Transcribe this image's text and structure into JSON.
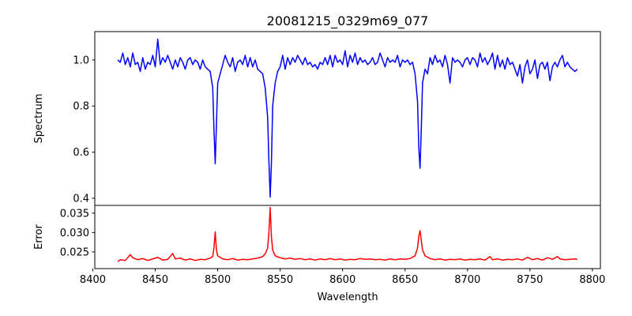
{
  "chart_data": [
    {
      "type": "line",
      "title": "20081215_0329m69_077",
      "xlabel": "",
      "ylabel": "Spectrum",
      "xlim": [
        8401.6,
        8806.4
      ],
      "ylim": [
        0.369,
        1.123
      ],
      "yticks": [
        0.4,
        0.6,
        0.8,
        1.0
      ],
      "ytick_labels": [
        "0.4",
        "0.6",
        "0.8",
        "1.0"
      ],
      "grid": false,
      "series": [
        {
          "name": "spectrum",
          "color": "#0000ff",
          "x": [
            8420,
            8422,
            8424,
            8426,
            8428,
            8430,
            8432,
            8434,
            8436,
            8438,
            8440,
            8442,
            8444,
            8446,
            8448,
            8450,
            8452,
            8454,
            8456,
            8458,
            8460,
            8462,
            8464,
            8466,
            8468,
            8470,
            8472,
            8474,
            8476,
            8478,
            8480,
            8482,
            8484,
            8486,
            8488,
            8490,
            8492,
            8494,
            8496,
            8497,
            8498,
            8499,
            8500,
            8502,
            8504,
            8506,
            8508,
            8510,
            8512,
            8514,
            8516,
            8518,
            8520,
            8522,
            8524,
            8526,
            8528,
            8530,
            8532,
            8534,
            8536,
            8538,
            8540,
            8541,
            8542,
            8543,
            8544,
            8546,
            8548,
            8550,
            8552,
            8554,
            8556,
            8558,
            8560,
            8562,
            8564,
            8566,
            8568,
            8570,
            8572,
            8574,
            8576,
            8578,
            8580,
            8582,
            8584,
            8586,
            8588,
            8590,
            8592,
            8594,
            8596,
            8598,
            8600,
            8602,
            8604,
            8606,
            8608,
            8610,
            8612,
            8614,
            8616,
            8618,
            8620,
            8622,
            8624,
            8626,
            8628,
            8630,
            8632,
            8634,
            8636,
            8638,
            8640,
            8642,
            8644,
            8646,
            8648,
            8650,
            8652,
            8654,
            8656,
            8658,
            8660,
            8661,
            8662,
            8663,
            8664,
            8666,
            8668,
            8670,
            8672,
            8674,
            8676,
            8678,
            8680,
            8682,
            8684,
            8686,
            8688,
            8690,
            8692,
            8694,
            8696,
            8698,
            8700,
            8702,
            8704,
            8706,
            8708,
            8710,
            8712,
            8714,
            8716,
            8718,
            8720,
            8722,
            8724,
            8726,
            8728,
            8730,
            8732,
            8734,
            8736,
            8738,
            8740,
            8742,
            8744,
            8746,
            8748,
            8750,
            8752,
            8754,
            8756,
            8758,
            8760,
            8762,
            8764,
            8766,
            8768,
            8770,
            8772,
            8774,
            8776,
            8778,
            8780,
            8782,
            8784,
            8786,
            8788
          ],
          "y": [
            1.0,
            0.99,
            1.03,
            0.98,
            1.01,
            0.97,
            1.03,
            0.98,
            0.99,
            0.95,
            1.01,
            0.96,
            0.99,
            0.98,
            1.02,
            0.97,
            1.09,
            0.98,
            1.01,
            0.99,
            1.02,
            0.99,
            0.96,
            1.0,
            0.97,
            1.01,
            0.99,
            0.96,
            1.0,
            1.01,
            0.98,
            1.0,
            0.99,
            0.96,
            1.0,
            0.97,
            0.96,
            0.95,
            0.88,
            0.7,
            0.55,
            0.72,
            0.9,
            0.94,
            0.98,
            1.02,
            0.99,
            0.97,
            1.01,
            0.95,
            0.99,
            1.0,
            0.98,
            1.02,
            0.97,
            1.01,
            0.97,
            1.0,
            0.96,
            0.95,
            0.94,
            0.88,
            0.75,
            0.56,
            0.405,
            0.55,
            0.8,
            0.9,
            0.95,
            0.97,
            1.02,
            0.96,
            1.01,
            0.98,
            1.01,
            0.99,
            1.02,
            1.0,
            0.98,
            1.01,
            0.98,
            0.99,
            0.97,
            0.98,
            0.96,
            0.99,
            0.98,
            1.01,
            0.98,
            1.02,
            0.97,
            1.02,
            0.99,
            1.0,
            0.98,
            1.04,
            0.97,
            1.02,
            0.99,
            1.03,
            0.98,
            1.01,
            0.99,
            1.0,
            0.98,
            0.99,
            1.01,
            0.98,
            0.99,
            1.03,
            1.0,
            0.97,
            1.01,
            0.99,
            1.0,
            0.99,
            1.02,
            0.97,
            1.0,
            0.99,
            1.0,
            0.98,
            0.99,
            0.94,
            0.82,
            0.62,
            0.53,
            0.7,
            0.9,
            0.96,
            0.94,
            1.01,
            0.98,
            1.02,
            0.99,
            1.0,
            0.97,
            1.02,
            0.98,
            0.9,
            1.01,
            0.99,
            1.0,
            0.99,
            0.97,
            1.0,
            1.01,
            0.98,
            1.01,
            1.0,
            0.97,
            1.03,
            0.99,
            1.01,
            0.98,
            1.0,
            1.03,
            0.96,
            1.02,
            0.97,
            1.0,
            0.96,
            1.01,
            0.98,
            0.99,
            0.96,
            0.93,
            0.98,
            0.9,
            0.97,
            1.0,
            0.94,
            0.96,
            1.0,
            0.92,
            0.98,
            0.99,
            0.96,
            0.99,
            0.91,
            0.97,
            0.99,
            0.97,
            1.0,
            1.02,
            0.97,
            0.99,
            0.97,
            0.96,
            0.95,
            0.96
          ]
        }
      ]
    },
    {
      "type": "line",
      "title": "",
      "xlabel": "Wavelength",
      "ylabel": "Error",
      "xlim": [
        8401.6,
        8806.4
      ],
      "ylim": [
        0.0207,
        0.037
      ],
      "xticks": [
        8400,
        8450,
        8500,
        8550,
        8600,
        8650,
        8700,
        8750,
        8800
      ],
      "xtick_labels": [
        "8400",
        "8450",
        "8500",
        "8550",
        "8600",
        "8650",
        "8700",
        "8750",
        "8800"
      ],
      "yticks": [
        0.025,
        0.03,
        0.035
      ],
      "ytick_labels": [
        "0.025",
        "0.030",
        "0.035"
      ],
      "grid": false,
      "series": [
        {
          "name": "error",
          "color": "#ff0000",
          "x": [
            8420,
            8422,
            8426,
            8430,
            8432,
            8436,
            8440,
            8444,
            8448,
            8452,
            8456,
            8460,
            8464,
            8466,
            8470,
            8474,
            8478,
            8482,
            8486,
            8490,
            8494,
            8496,
            8497,
            8498,
            8499,
            8500,
            8504,
            8508,
            8512,
            8516,
            8520,
            8524,
            8528,
            8532,
            8536,
            8538,
            8540,
            8541,
            8542,
            8543,
            8544,
            8546,
            8550,
            8554,
            8558,
            8562,
            8566,
            8570,
            8574,
            8578,
            8582,
            8586,
            8590,
            8594,
            8598,
            8602,
            8606,
            8610,
            8614,
            8618,
            8622,
            8626,
            8630,
            8634,
            8638,
            8642,
            8646,
            8650,
            8654,
            8658,
            8660,
            8661,
            8662,
            8663,
            8664,
            8666,
            8670,
            8674,
            8678,
            8682,
            8686,
            8690,
            8694,
            8698,
            8702,
            8706,
            8710,
            8714,
            8718,
            8720,
            8724,
            8728,
            8732,
            8736,
            8740,
            8744,
            8748,
            8752,
            8756,
            8760,
            8764,
            8768,
            8772,
            8774,
            8778,
            8782,
            8786,
            8788
          ],
          "y": [
            0.0225,
            0.023,
            0.0228,
            0.0243,
            0.0235,
            0.023,
            0.0233,
            0.0228,
            0.0232,
            0.0236,
            0.0229,
            0.0231,
            0.0246,
            0.0232,
            0.0234,
            0.0229,
            0.0232,
            0.0228,
            0.0231,
            0.023,
            0.0234,
            0.0238,
            0.026,
            0.0302,
            0.0255,
            0.024,
            0.0232,
            0.023,
            0.0233,
            0.0229,
            0.0231,
            0.023,
            0.0232,
            0.0234,
            0.0238,
            0.0245,
            0.026,
            0.03,
            0.0365,
            0.029,
            0.0255,
            0.024,
            0.0235,
            0.0232,
            0.0234,
            0.0231,
            0.0233,
            0.023,
            0.0232,
            0.0229,
            0.0232,
            0.023,
            0.0233,
            0.023,
            0.0232,
            0.0229,
            0.0231,
            0.023,
            0.0233,
            0.0231,
            0.0232,
            0.023,
            0.0231,
            0.0229,
            0.0232,
            0.023,
            0.0232,
            0.0231,
            0.0233,
            0.024,
            0.026,
            0.029,
            0.0305,
            0.028,
            0.0255,
            0.024,
            0.0233,
            0.023,
            0.0232,
            0.0229,
            0.0231,
            0.023,
            0.0232,
            0.0229,
            0.0231,
            0.023,
            0.0232,
            0.0229,
            0.0238,
            0.023,
            0.0232,
            0.0229,
            0.0231,
            0.023,
            0.0232,
            0.0229,
            0.0236,
            0.023,
            0.0233,
            0.0229,
            0.0235,
            0.0231,
            0.0238,
            0.0232,
            0.023,
            0.0231,
            0.0232,
            0.0231
          ]
        }
      ]
    }
  ]
}
